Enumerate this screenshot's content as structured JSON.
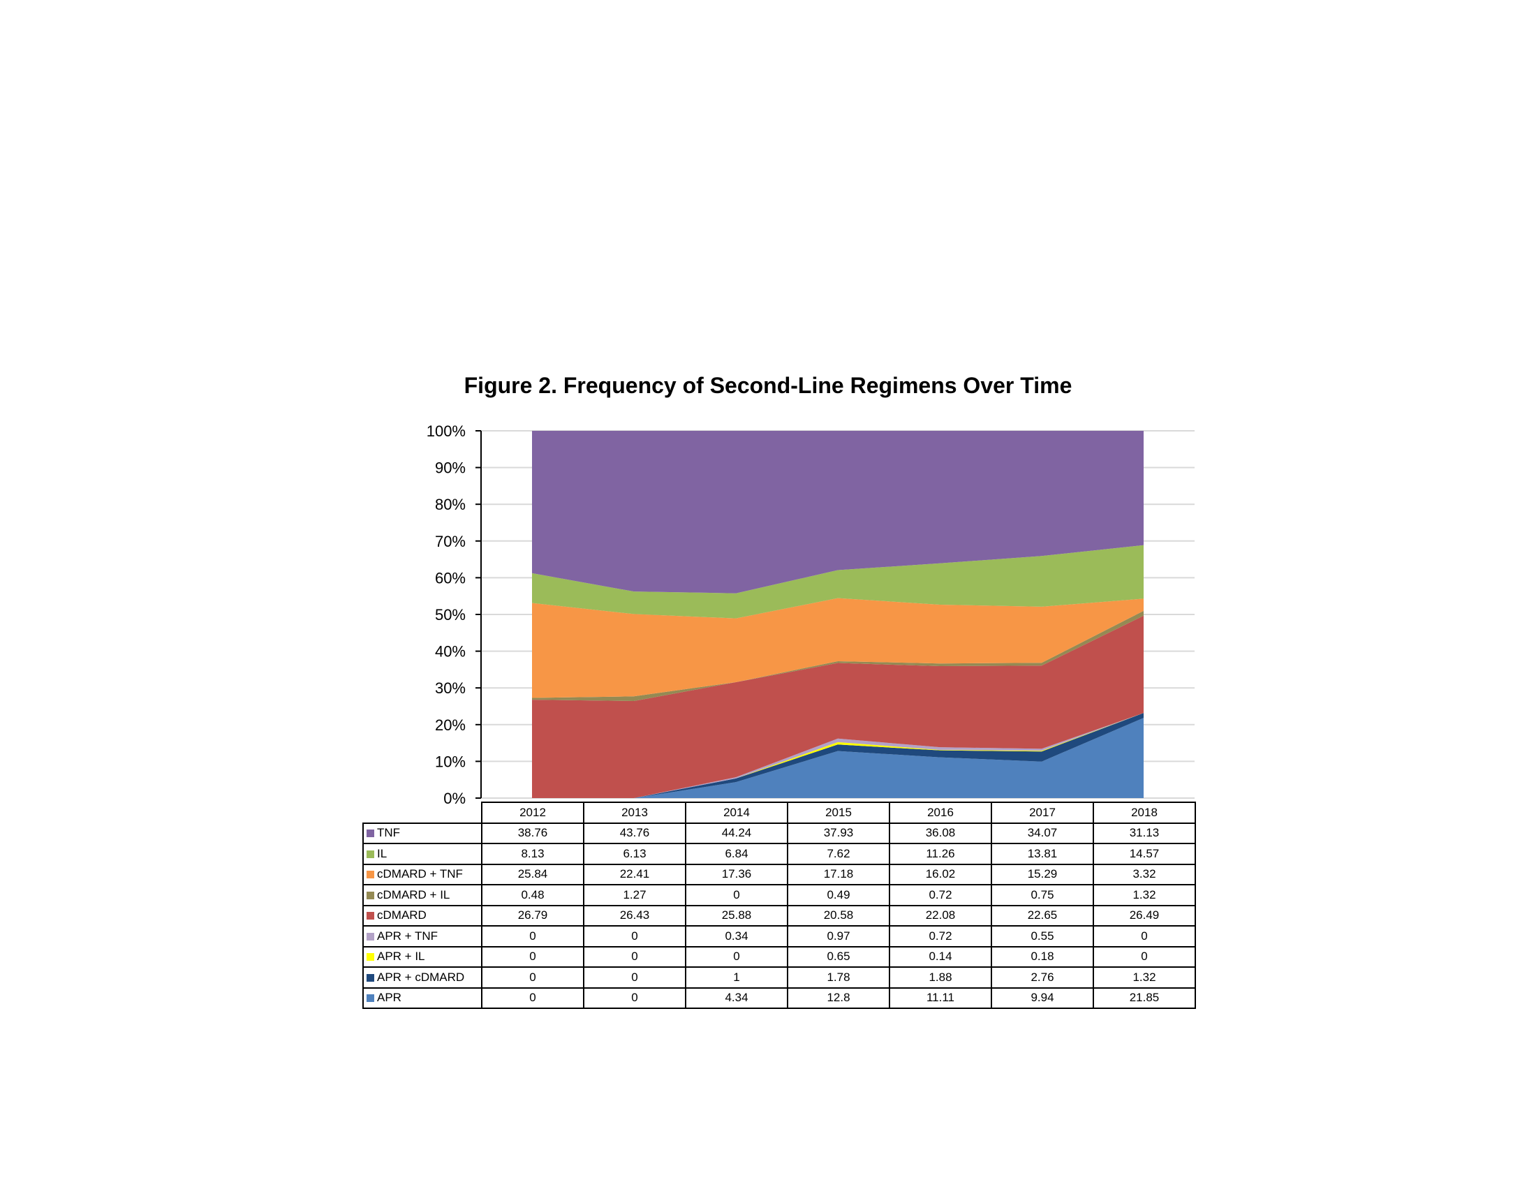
{
  "chart_data": {
    "type": "area",
    "stacked": true,
    "percent": true,
    "title": "Figure 2. Frequency of Second-Line Regimens Over Time",
    "xlabel": "",
    "ylabel": "",
    "categories": [
      "2012",
      "2013",
      "2014",
      "2015",
      "2016",
      "2017",
      "2018"
    ],
    "ylim": [
      0,
      100
    ],
    "yticks": [
      "0%",
      "10%",
      "20%",
      "30%",
      "40%",
      "50%",
      "60%",
      "70%",
      "80%",
      "90%",
      "100%"
    ],
    "grid": true,
    "legend": "data-table",
    "series": [
      {
        "name": "APR",
        "color": "#4f81bd",
        "values": [
          0,
          0,
          4.34,
          12.8,
          11.11,
          9.94,
          21.85
        ]
      },
      {
        "name": "APR + cDMARD",
        "color": "#1f497d",
        "values": [
          0,
          0,
          1,
          1.78,
          1.88,
          2.76,
          1.32
        ]
      },
      {
        "name": "APR + IL",
        "color": "#ffff00",
        "values": [
          0,
          0,
          0,
          0.65,
          0.14,
          0.18,
          0
        ]
      },
      {
        "name": "APR + TNF",
        "color": "#b3a2c7",
        "values": [
          0,
          0,
          0.34,
          0.97,
          0.72,
          0.55,
          0
        ]
      },
      {
        "name": "cDMARD",
        "color": "#c0504d",
        "values": [
          26.79,
          26.43,
          25.88,
          20.58,
          22.08,
          22.65,
          26.49
        ]
      },
      {
        "name": "cDMARD + IL",
        "color": "#948a54",
        "values": [
          0.48,
          1.27,
          0,
          0.49,
          0.72,
          0.75,
          1.32
        ]
      },
      {
        "name": "cDMARD + TNF",
        "color": "#f79646",
        "values": [
          25.84,
          22.41,
          17.36,
          17.18,
          16.02,
          15.29,
          3.32
        ]
      },
      {
        "name": "IL",
        "color": "#9bbb59",
        "values": [
          8.13,
          6.13,
          6.84,
          7.62,
          11.26,
          13.81,
          14.57
        ]
      },
      {
        "name": "TNF",
        "color": "#8064a2",
        "values": [
          38.76,
          43.76,
          44.24,
          37.93,
          36.08,
          34.07,
          31.13
        ]
      }
    ],
    "table_row_order": [
      "TNF",
      "IL",
      "cDMARD + TNF",
      "cDMARD + IL",
      "cDMARD",
      "APR + TNF",
      "APR + IL",
      "APR + cDMARD",
      "APR"
    ]
  }
}
